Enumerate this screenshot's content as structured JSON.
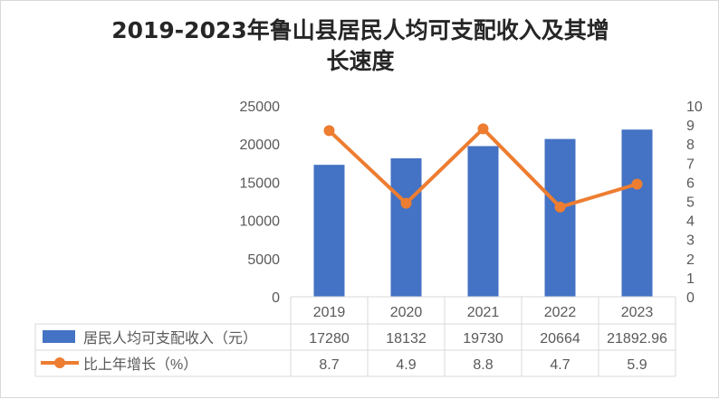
{
  "chart_data": {
    "type": "bar",
    "title_line1": "2019-2023年鲁山县居民人均可支配收入及其增",
    "title_line2": "长速度",
    "categories": [
      "2019",
      "2020",
      "2021",
      "2022",
      "2023"
    ],
    "series": [
      {
        "name": "居民人均可支配收入（元）",
        "type": "bar",
        "axis": "left",
        "values": [
          17280,
          18132,
          19730,
          20664,
          21892.96
        ],
        "value_labels": [
          "17280",
          "18132",
          "19730",
          "20664",
          "21892.96"
        ],
        "color": "#4472c4"
      },
      {
        "name": "比上年增长（%）",
        "type": "line",
        "axis": "right",
        "values": [
          8.7,
          4.9,
          8.8,
          4.7,
          5.9
        ],
        "value_labels": [
          "8.7",
          "4.9",
          "8.8",
          "4.7",
          "5.9"
        ],
        "color": "#ed7d31"
      }
    ],
    "y_left": {
      "min": 0,
      "max": 25000,
      "ticks": [
        "0",
        "5000",
        "10000",
        "15000",
        "20000",
        "25000"
      ]
    },
    "y_right": {
      "min": 0,
      "max": 10,
      "ticks": [
        "0",
        "1",
        "2",
        "3",
        "4",
        "5",
        "6",
        "7",
        "8",
        "9",
        "10"
      ]
    },
    "data_table": true
  }
}
